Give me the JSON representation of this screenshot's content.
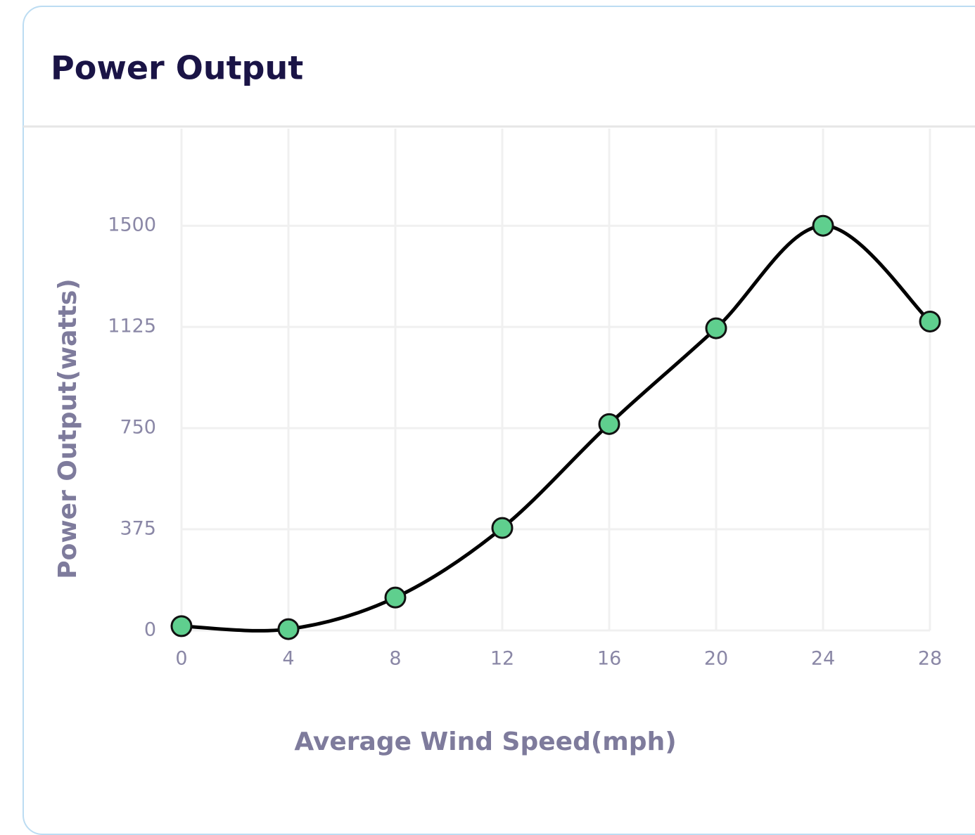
{
  "chart_data": {
    "type": "line",
    "title": "Power Output",
    "x_label": "Average Wind Speed(mph)",
    "y_label": "Power Output(watts)",
    "x": [
      0,
      4,
      8,
      12,
      16,
      20,
      24,
      28
    ],
    "series": [
      {
        "name": "Power Output",
        "color": "#000000",
        "marker_color": "#5fcf8e",
        "values": [
          16,
          5,
          122,
          380,
          765,
          1120,
          1500,
          1145
        ]
      }
    ],
    "xlim": [
      0,
      29
    ],
    "xticks": [
      0,
      4,
      8,
      12,
      16,
      20,
      24,
      28
    ],
    "ylim": [
      0,
      1860
    ],
    "yticks": [
      0,
      375,
      750,
      1125,
      1500
    ],
    "grid": true
  }
}
